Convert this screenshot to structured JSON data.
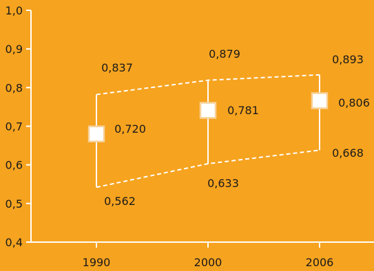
{
  "chart_data": {
    "type": "scatter",
    "categories": [
      "1990",
      "2000",
      "2006"
    ],
    "series": [
      {
        "role": "point",
        "values": [
          0.72,
          0.781,
          0.806
        ],
        "labels": [
          "0,720",
          "0,781",
          "0,806"
        ]
      },
      {
        "role": "upper",
        "values": [
          0.837,
          0.879,
          0.893
        ],
        "labels": [
          "0,837",
          "0,879",
          "0,893"
        ]
      },
      {
        "role": "lower",
        "values": [
          0.562,
          0.633,
          0.668
        ],
        "labels": [
          "0,562",
          "0,633",
          "0,668"
        ]
      }
    ],
    "yticks": [
      0.4,
      0.5,
      0.6,
      0.7,
      0.8,
      0.9,
      1.0
    ],
    "ytick_labels": [
      "0,4",
      "0,5",
      "0,6",
      "0,7",
      "0,8",
      "0,9",
      "1,0"
    ],
    "ylim": [
      0.4,
      1.0
    ],
    "title": "",
    "xlabel": "",
    "ylabel": "",
    "grid": false,
    "colors": {
      "background": "#F6A31F",
      "axis": "#FFFFFF",
      "marker_fill": "#FFFFFF",
      "marker_border": "#F7D29A",
      "text": "#1A1A1A"
    }
  }
}
